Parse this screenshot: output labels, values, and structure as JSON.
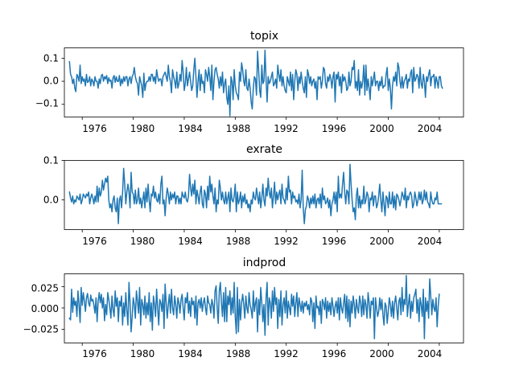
{
  "chart_data": [
    {
      "type": "line",
      "title": "topix",
      "xlabel": "",
      "ylabel": "",
      "xlim": [
        1974.6,
        2005.9
      ],
      "ylim": [
        -0.155,
        0.145
      ],
      "x_ticks": [
        1976,
        1980,
        1984,
        1988,
        1992,
        1996,
        2000,
        2004
      ],
      "x_tick_labels": [
        "1976",
        "1980",
        "1984",
        "1988",
        "1992",
        "1996",
        "2000",
        "2004"
      ],
      "y_ticks": [
        -0.1,
        0.0,
        0.1
      ],
      "y_tick_labels": [
        "−0.1",
        "0.0",
        "0.1"
      ],
      "grid": false,
      "color": "#1f77b4",
      "x_start": 1975.0,
      "x_step": 0.08333,
      "values": [
        0.085,
        0.03,
        0.02,
        -0.01,
        0.01,
        -0.03,
        -0.045,
        0.03,
        0.02,
        0.0,
        0.07,
        -0.01,
        0.02,
        0.0,
        0.01,
        -0.02,
        0.03,
        -0.005,
        0.0,
        0.02,
        -0.02,
        0.01,
        0.0,
        -0.02,
        0.02,
        0.0,
        0.0,
        -0.03,
        0.01,
        -0.01,
        0.025,
        0.03,
        0.0,
        0.02,
        0.01,
        0.025,
        -0.01,
        0.015,
        0.0,
        0.005,
        -0.03,
        0.015,
        0.025,
        -0.005,
        0.02,
        0.0,
        0.0,
        0.025,
        -0.02,
        0.01,
        -0.01,
        0.02,
        0.0,
        0.02,
        0.02,
        -0.02,
        0.01,
        0.02,
        -0.01,
        0.02,
        0.03,
        0.06,
        0.02,
        0.0,
        -0.01,
        -0.06,
        0.02,
        0.0,
        -0.02,
        -0.07,
        0.035,
        -0.04,
        -0.01,
        0.0,
        0.0,
        0.02,
        0.0,
        0.03,
        0.03,
        0.0,
        0.02,
        -0.01,
        0.05,
        0.02,
        0.0,
        0.01,
        0.01,
        -0.02,
        0.02,
        0.03,
        0.04,
        0.02,
        0.0,
        0.07,
        0.02,
        0.0,
        -0.05,
        0.05,
        0.02,
        0.0,
        -0.03,
        0.04,
        -0.03,
        -0.01,
        0.03,
        0.0,
        0.09,
        0.04,
        -0.04,
        -0.01,
        0.06,
        -0.02,
        0.01,
        0.04,
        0.0,
        -0.04,
        -0.02,
        0.05,
        0.1,
        0.02,
        -0.07,
        0.0,
        0.05,
        -0.04,
        0.03,
        -0.01,
        0.0,
        -0.05,
        0.05,
        0.03,
        0.0,
        0.06,
        0.02,
        -0.04,
        0.07,
        -0.08,
        0.0,
        0.05,
        0.06,
        0.03,
        0.01,
        -0.03,
        0.02,
        -0.02,
        0.04,
        -0.05,
        -0.01,
        0.01,
        -0.07,
        -0.1,
        -0.02,
        -0.15,
        0.02,
        0.0,
        -0.08,
        0.05,
        -0.02,
        -0.05,
        -0.06,
        -0.08,
        0.04,
        0.0,
        0.08,
        0.05,
        0.0,
        -0.02,
        0.05,
        -0.03,
        -0.04,
        0.01,
        -0.03,
        -0.09,
        -0.12,
        -0.03,
        0.02,
        0.01,
        -0.06,
        0.13,
        0.05,
        -0.04,
        -0.07,
        0.07,
        -0.01,
        0.0,
        0.135,
        0.01,
        -0.09,
        0.02,
        -0.01,
        0.0,
        0.02,
        0.04,
        -0.02,
        -0.01,
        0.01,
        -0.03,
        0.07,
        0.03,
        0.0,
        0.05,
        -0.02,
        0.02,
        -0.02,
        -0.04,
        -0.05,
        0.02,
        0.0,
        -0.02,
        0.04,
        -0.04,
        0.03,
        -0.08,
        0.0,
        0.05,
        0.03,
        -0.04,
        0.02,
        -0.01,
        0.04,
        0.0,
        -0.03,
        -0.05,
        0.02,
        -0.07,
        0.05,
        0.03,
        -0.01,
        0.02,
        -0.02,
        0.0,
        0.01,
        -0.03,
        0.0,
        -0.08,
        0.02,
        0.01,
        0.02,
        -0.03,
        0.0,
        0.06,
        0.05,
        -0.01,
        -0.03,
        0.02,
        0.0,
        0.03,
        0.01,
        -0.03,
        0.02,
        0.04,
        -0.09,
        0.03,
        0.01,
        0.04,
        -0.02,
        0.02,
        -0.05,
        0.03,
        0.0,
        0.02,
        0.0,
        -0.04,
        -0.03,
        0.04,
        -0.02,
        0.0,
        0.06,
        0.05,
        0.09,
        -0.03,
        0.0,
        -0.04,
        0.05,
        -0.06,
        0.0,
        -0.03,
        0.0,
        0.07,
        -0.06,
        0.07,
        -0.04,
        0.01,
        -0.03,
        -0.08,
        0.02,
        -0.02,
        0.01,
        0.04,
        -0.02,
        0.0,
        0.0,
        -0.04,
        0.0,
        -0.02,
        0.02,
        -0.03,
        -0.02,
        -0.02,
        0.03,
        0.06,
        -0.04,
        0.01,
        -0.03,
        -0.12,
        -0.02,
        0.02,
        0.0,
        0.04,
        -0.02,
        0.08,
        0.06,
        0.0,
        -0.03,
        0.02,
        -0.03,
        0.0,
        0.01,
        0.03,
        -0.03,
        0.01,
        0.0,
        0.035,
        0.05,
        -0.05,
        0.06,
        0.0,
        0.01,
        0.03,
        0.02,
        -0.03,
        0.06,
        -0.01,
        -0.03,
        0.03,
        0.0,
        -0.07,
        0.02,
        0.0,
        0.03,
        0.05,
        -0.02,
        0.02,
        0.02,
        0.03,
        -0.03,
        0.02,
        0.0,
        -0.03,
        0.02,
        0.02,
        -0.02,
        -0.03
      ]
    },
    {
      "type": "line",
      "title": "exrate",
      "xlabel": "",
      "ylabel": "",
      "xlim": [
        1974.6,
        2005.9
      ],
      "ylim": [
        -0.075,
        0.1
      ],
      "x_ticks": [
        1976,
        1980,
        1984,
        1988,
        1992,
        1996,
        2000,
        2004
      ],
      "x_tick_labels": [
        "1976",
        "1980",
        "1984",
        "1988",
        "1992",
        "1996",
        "2000",
        "2004"
      ],
      "y_ticks": [
        0.0,
        0.1
      ],
      "y_tick_labels": [
        "0.0",
        "0.1"
      ],
      "grid": false,
      "color": "#1f77b4",
      "x_start": 1975.0,
      "x_step": 0.08333,
      "values": [
        0.02,
        0.005,
        -0.005,
        0.01,
        -0.01,
        0.0,
        -0.005,
        0.01,
        0.005,
        0.0,
        0.015,
        -0.01,
        0.0,
        0.015,
        0.01,
        0.005,
        0.015,
        0.01,
        0.02,
        -0.01,
        0.005,
        0.015,
        0.005,
        -0.01,
        0.01,
        -0.005,
        0.035,
        -0.005,
        0.03,
        0.01,
        0.02,
        0.05,
        0.025,
        0.04,
        0.055,
        0.045,
        0.06,
        0.0,
        -0.02,
        -0.01,
        -0.03,
        0.0,
        0.01,
        -0.02,
        -0.03,
        0.005,
        -0.06,
        0.0,
        0.01,
        -0.02,
        0.02,
        0.08,
        0.04,
        -0.01,
        0.02,
        0.04,
        0.02,
        -0.02,
        0.07,
        0.02,
        0.015,
        -0.01,
        0.025,
        -0.01,
        0.0,
        0.03,
        -0.01,
        0.005,
        -0.02,
        0.0,
        0.02,
        -0.02,
        0.03,
        -0.005,
        0.04,
        0.0,
        -0.03,
        0.015,
        0.01,
        0.035,
        0.005,
        0.02,
        0.0,
        -0.005,
        0.015,
        -0.01,
        0.04,
        0.06,
        -0.01,
        0.0,
        -0.04,
        0.005,
        0.03,
        0.015,
        -0.01,
        0.02,
        0.0,
        0.015,
        0.005,
        0.02,
        -0.01,
        0.01,
        0.01,
        -0.01,
        0.005,
        -0.01,
        0.02,
        0.01,
        0.005,
        0.02,
        0.0,
        -0.005,
        0.01,
        0.065,
        0.03,
        0.01,
        0.04,
        0.015,
        0.05,
        -0.01,
        0.025,
        0.01,
        -0.01,
        0.02,
        0.035,
        -0.01,
        -0.02,
        0.025,
        0.015,
        -0.02,
        0.035,
        0.0,
        0.06,
        0.02,
        0.04,
        0.01,
        -0.01,
        0.03,
        -0.03,
        0.0,
        -0.01,
        0.05,
        0.03,
        0.0,
        0.02,
        0.0,
        -0.01,
        0.02,
        -0.01,
        0.005,
        0.02,
        -0.03,
        0.03,
        0.0,
        -0.005,
        0.01,
        0.04,
        -0.03,
        0.02,
        -0.01,
        0.0,
        0.02,
        -0.02,
        0.01,
        -0.005,
        0.015,
        -0.01,
        0.0,
        -0.02,
        -0.01,
        -0.03,
        0.0,
        -0.01,
        0.02,
        0.005,
        0.0,
        0.03,
        0.01,
        -0.01,
        0.02,
        -0.02,
        0.005,
        0.04,
        0.0,
        -0.015,
        0.03,
        0.01,
        0.055,
        0.02,
        0.005,
        0.03,
        -0.02,
        0.01,
        0.045,
        -0.01,
        0.02,
        0.0,
        0.015,
        0.025,
        -0.01,
        0.04,
        0.005,
        0.0,
        -0.01,
        0.03,
        0.0,
        0.06,
        0.02,
        0.025,
        -0.01,
        0.02,
        0.005,
        0.01,
        -0.005,
        0.0,
        -0.01,
        0.015,
        -0.02,
        0.0,
        0.075,
        -0.02,
        -0.06,
        -0.025,
        -0.015,
        0.01,
        0.0,
        -0.02,
        0.005,
        -0.01,
        0.01,
        -0.01,
        0.015,
        -0.02,
        0.0,
        0.005,
        -0.01,
        0.015,
        -0.02,
        0.03,
        0.0,
        0.01,
        -0.01,
        -0.005,
        0.005,
        -0.02,
        0.0,
        -0.04,
        -0.01,
        0.0,
        0.02,
        -0.01,
        0.02,
        -0.03,
        0.06,
        0.005,
        0.015,
        0.005,
        0.04,
        0.07,
        0.02,
        -0.01,
        0.025,
        0.02,
        -0.01,
        0.09,
        0.04,
        0.0,
        -0.03,
        -0.02,
        -0.05,
        0.01,
        0.03,
        -0.02,
        0.01,
        -0.02,
        0.0,
        -0.01,
        0.035,
        -0.01,
        0.0,
        0.02,
        0.01,
        -0.03,
        0.005,
        0.0,
        0.02,
        -0.015,
        0.01,
        0.01,
        -0.02,
        -0.01,
        0.01,
        0.04,
        0.0,
        -0.03,
        0.02,
        -0.01,
        -0.04,
        0.01,
        0.005,
        -0.02,
        0.02,
        -0.01,
        -0.01,
        0.02,
        -0.02,
        0.01,
        -0.025,
        0.015,
        0.01,
        0.0,
        -0.015,
        0.0,
        0.02,
        0.01,
        0.0,
        0.03,
        -0.02,
        0.01,
        0.0,
        0.015,
        0.02,
        0.01,
        -0.02,
        -0.01,
        0.02,
        0.005,
        -0.015,
        0.0,
        0.02,
        0.0,
        0.02,
        -0.01,
        0.0,
        0.025,
        0.0,
        0.02,
        -0.005,
        -0.01,
        -0.02,
        0.02,
        0.0,
        -0.01,
        -0.01,
        0.005,
        0.0,
        0.02,
        -0.01,
        -0.01,
        -0.01,
        -0.01
      ]
    },
    {
      "type": "line",
      "title": "indprod",
      "xlabel": "",
      "ylabel": "",
      "xlim": [
        1974.6,
        2005.9
      ],
      "ylim": [
        -0.041,
        0.04
      ],
      "x_ticks": [
        1976,
        1980,
        1984,
        1988,
        1992,
        1996,
        2000,
        2004
      ],
      "x_tick_labels": [
        "1976",
        "1980",
        "1984",
        "1988",
        "1992",
        "1996",
        "2000",
        "2004"
      ],
      "y_ticks": [
        -0.025,
        0.0,
        0.025
      ],
      "y_tick_labels": [
        "−0.025",
        "0.000",
        "0.025"
      ],
      "grid": false,
      "color": "#1f77b4",
      "x_start": 1975.0,
      "x_step": 0.08333,
      "values": [
        -0.012,
        -0.014,
        0.022,
        -0.005,
        0.012,
        0.003,
        0.008,
        -0.01,
        0.02,
        0.004,
        -0.017,
        0.024,
        0.003,
        0.018,
        0.008,
        -0.004,
        0.012,
        0.017,
        0.006,
        0.002,
        0.015,
        0.008,
        0.01,
        0.003,
        -0.006,
        0.012,
        -0.016,
        0.008,
        0.018,
        0.006,
        0.016,
        0.0,
        0.012,
        -0.015,
        0.004,
        -0.008,
        0.018,
        0.01,
        0.0,
        -0.012,
        0.014,
        -0.002,
        -0.01,
        0.02,
        0.002,
        0.012,
        -0.016,
        0.008,
        0.002,
        0.014,
        -0.02,
        0.006,
        -0.01,
        0.018,
        -0.003,
        -0.02,
        0.03,
        0.006,
        -0.028,
        -0.01,
        0.012,
        0.004,
        -0.012,
        0.02,
        0.008,
        -0.006,
        0.024,
        -0.02,
        0.01,
        0.004,
        -0.008,
        0.014,
        -0.012,
        0.006,
        -0.008,
        0.018,
        -0.016,
        0.006,
        -0.026,
        0.014,
        0.004,
        -0.01,
        0.022,
        0.0,
        -0.02,
        0.01,
        0.006,
        -0.004,
        0.016,
        -0.024,
        0.028,
        0.006,
        -0.012,
        0.004,
        0.016,
        -0.006,
        0.022,
        0.0,
        -0.008,
        0.014,
        0.004,
        -0.012,
        0.012,
        0.006,
        -0.006,
        0.01,
        0.016,
        0.0,
        -0.014,
        0.012,
        0.006,
        0.018,
        -0.006,
        0.008,
        -0.01,
        0.012,
        0.004,
        0.008,
        -0.012,
        0.014,
        -0.02,
        0.006,
        0.01,
        0.0,
        0.012,
        -0.004,
        0.006,
        0.012,
        0.0,
        -0.008,
        0.014,
        0.006,
        0.004,
        -0.006,
        0.01,
        0.004,
        -0.012,
        0.02,
        0.026,
        0.0,
        -0.018,
        0.02,
        0.03,
        0.006,
        -0.01,
        0.018,
        -0.016,
        0.024,
        -0.016,
        0.014,
        0.004,
        0.02,
        -0.008,
        0.012,
        -0.006,
        0.03,
        -0.01,
        -0.03,
        0.024,
        -0.028,
        0.01,
        -0.014,
        0.006,
        0.016,
        0.004,
        -0.012,
        0.014,
        0.0,
        -0.006,
        0.018,
        0.004,
        -0.002,
        -0.012,
        0.02,
        -0.004,
        0.006,
        0.012,
        -0.028,
        0.01,
        -0.008,
        0.024,
        0.006,
        -0.016,
        0.004,
        -0.032,
        0.012,
        0.03,
        -0.02,
        0.012,
        0.006,
        -0.012,
        0.02,
        -0.004,
        0.024,
        0.004,
        0.012,
        -0.024,
        0.01,
        -0.01,
        0.02,
        -0.02,
        0.004,
        0.012,
        -0.006,
        0.02,
        -0.012,
        0.008,
        0.0,
        -0.008,
        0.016,
        0.002,
        0.014,
        -0.01,
        0.006,
        0.018,
        -0.01,
        0.012,
        0.004,
        -0.004,
        0.008,
        -0.006,
        0.006,
        0.002,
        0.008,
        -0.002,
        0.004,
        -0.008,
        0.012,
        0.008,
        -0.016,
        0.006,
        -0.024,
        0.014,
        0.0,
        0.002,
        -0.008,
        0.008,
        -0.018,
        0.01,
        0.006,
        -0.002,
        0.012,
        -0.012,
        0.008,
        -0.004,
        0.006,
        -0.008,
        0.012,
        0.002,
        -0.01,
        0.002,
        0.008,
        -0.006,
        0.012,
        -0.014,
        0.012,
        0.0,
        -0.006,
        0.006,
        0.016,
        -0.012,
        0.014,
        -0.016,
        0.01,
        -0.022,
        0.008,
        -0.006,
        0.014,
        0.004,
        -0.012,
        0.01,
        0.0,
        -0.006,
        0.014,
        0.006,
        -0.01,
        0.014,
        -0.008,
        0.01,
        0.004,
        -0.012,
        0.018,
        0.006,
        -0.012,
        0.008,
        0.004,
        0.012,
        -0.036,
        0.012,
        0.0,
        -0.01,
        -0.004,
        0.012,
        -0.002,
        0.01,
        -0.008,
        -0.02,
        0.006,
        0.002,
        -0.018,
        -0.004,
        0.012,
        0.004,
        -0.01,
        0.008,
        -0.012,
        0.006,
        0.014,
        0.0,
        -0.014,
        0.008,
        0.012,
        -0.008,
        0.024,
        -0.004,
        0.01,
        0.004,
        0.038,
        -0.01,
        0.004,
        0.016,
        -0.012,
        0.008,
        -0.004,
        0.012,
        0.016,
        0.022,
        -0.006,
        0.01,
        -0.016,
        0.012,
        0.004,
        -0.01,
        0.022,
        -0.036,
        0.012,
        -0.004,
        0.008,
        -0.012,
        0.034,
        0.014,
        -0.008,
        0.01,
        0.0,
        -0.004,
        0.012,
        -0.022,
        0.002,
        0.016
      ]
    }
  ]
}
